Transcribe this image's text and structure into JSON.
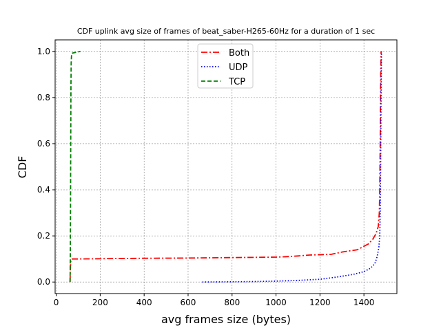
{
  "chart_data": {
    "type": "line",
    "title": "CDF uplink avg size of frames of beat_saber-H265-60Hz for a duration of 1 sec",
    "xlabel": "avg frames size (bytes)",
    "ylabel": "CDF",
    "xlim": [
      -5,
      1550
    ],
    "ylim": [
      -0.05,
      1.05
    ],
    "xticks": [
      0,
      200,
      400,
      600,
      800,
      1000,
      1200,
      1400
    ],
    "yticks": [
      0.0,
      0.2,
      0.4,
      0.6,
      0.8,
      1.0
    ],
    "grid": true,
    "legend_position": "upper center",
    "series": [
      {
        "name": "Both",
        "color": "#ff0000",
        "dash": "dashdot",
        "x": [
          63,
          64,
          66,
          70,
          100,
          200,
          400,
          600,
          800,
          1000,
          1050,
          1100,
          1150,
          1250,
          1300,
          1370,
          1400,
          1420,
          1440,
          1455,
          1465,
          1470,
          1472,
          1474,
          1476,
          1478
        ],
        "y": [
          0.0,
          0.05,
          0.09,
          0.1,
          0.1,
          0.101,
          0.103,
          0.104,
          0.106,
          0.108,
          0.11,
          0.113,
          0.117,
          0.12,
          0.13,
          0.14,
          0.155,
          0.165,
          0.185,
          0.21,
          0.24,
          0.3,
          0.4,
          0.6,
          0.85,
          1.0
        ]
      },
      {
        "name": "UDP",
        "color": "#0000ff",
        "dash": "dotted",
        "x": [
          665,
          800,
          900,
          1000,
          1100,
          1200,
          1250,
          1300,
          1350,
          1400,
          1430,
          1450,
          1460,
          1468,
          1472,
          1474,
          1476,
          1478,
          1480
        ],
        "y": [
          0.0,
          0.001,
          0.002,
          0.004,
          0.007,
          0.012,
          0.018,
          0.025,
          0.033,
          0.045,
          0.06,
          0.08,
          0.11,
          0.15,
          0.2,
          0.3,
          0.5,
          0.8,
          1.0
        ]
      },
      {
        "name": "TCP",
        "color": "#008000",
        "dash": "dashed",
        "x": [
          63,
          64,
          65,
          66,
          67,
          68,
          70,
          75,
          85,
          95,
          105,
          110
        ],
        "y": [
          0.0,
          0.1,
          0.3,
          0.6,
          0.85,
          0.95,
          0.99,
          0.993,
          0.995,
          0.997,
          0.999,
          1.0
        ]
      }
    ]
  }
}
